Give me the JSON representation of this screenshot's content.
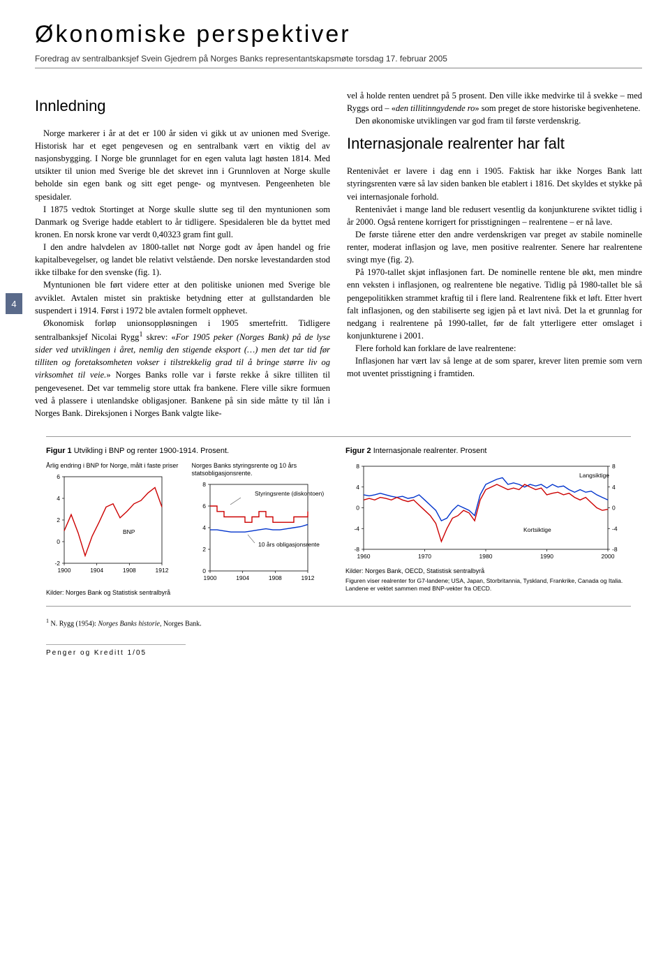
{
  "page_number": "4",
  "title": "Økonomiske perspektiver",
  "subtitle": "Foredrag av sentralbanksjef Svein Gjedrem på Norges Banks representantskapsmøte torsdag 17. februar 2005",
  "section1_title": "Innledning",
  "section2_title": "Internasjonale realrenter har falt",
  "col1": {
    "p1": "Norge markerer i år at det er 100 år siden vi gikk ut av unionen med Sverige. Historisk har et eget pengevesen og en sentralbank vært en viktig del av nasjonsbygging. I Norge ble grunnlaget for en egen valuta lagt høsten 1814. Med utsikter til union med Sverige ble det skrevet inn i Grunnloven at Norge skulle beholde sin egen bank og sitt eget penge- og myntvesen. Pengeenheten ble spesidaler.",
    "p2": "I 1875 vedtok Stortinget at Norge skulle slutte seg til den myntunionen som Danmark og Sverige hadde etablert to år tidligere. Spesidaleren ble da byttet med kronen. En norsk krone var verdt 0,40323 gram fint gull.",
    "p3": "I den andre halvdelen av 1800-tallet nøt Norge godt av åpen handel og frie kapitalbevegelser, og landet ble relativt velstående. Den norske levestandarden stod ikke tilbake for den svenske (fig. 1).",
    "p4": "Myntunionen ble ført videre etter at den politiske unionen med Sverige ble avviklet. Avtalen mistet sin praktiske betydning etter at gullstandarden ble suspendert i 1914. Først i 1972 ble avtalen formelt opphevet.",
    "p5a": "Økonomisk forløp unionsoppløsningen i 1905 smertefritt. Tidligere sentralbanksjef Nicolai Rygg",
    "p5b": " skrev: «",
    "p5c": "For 1905 peker (Norges Bank) på de lyse sider ved utviklingen i året, nemlig den stigende eksport (…) men det tar tid før tilliten og foretaksomheten vokser i tilstrekkelig grad til å bringe større liv og virksomhet til veie.",
    "p5d": "» Norges Banks rolle var i første rekke å sikre tilliten til pengevesenet. Det var temmelig store uttak fra bankene. Flere ville sikre formuen ved å plassere i utenlandske obligasjoner. Bankene på sin side måtte ty til lån i Norges Bank. Direksjonen i Norges Bank valgte like-"
  },
  "col2": {
    "p1": "vel å holde renten uendret på 5 prosent. Den ville ikke medvirke til å svekke – med Ryggs ord – «",
    "p1b": "den tillitinngydende ro",
    "p1c": "» som preget de store historiske begivenhetene.",
    "p2": "Den økonomiske utviklingen var god fram til første verdenskrig.",
    "p3": "Rentenivået er lavere i dag enn i 1905. Faktisk har ikke Norges Bank latt styringsrenten være så lav siden banken ble etablert i 1816. Det skyldes et stykke på vei internasjonale forhold.",
    "p4": "Rentenivået i mange land ble redusert vesentlig da konjunkturene sviktet tidlig i år 2000. Også rentene korrigert for prisstigningen – realrentene – er nå lave.",
    "p5": "De første tiårene etter den andre verdenskrigen var preget av stabile nominelle renter, moderat inflasjon og lave, men positive realrenter. Senere har realrentene svingt mye (fig. 2).",
    "p6": "På 1970-tallet skjøt inflasjonen fart. De nominelle rentene ble økt, men mindre enn veksten i inflasjonen, og realrentene ble negative. Tidlig på 1980-tallet ble så pengepolitikken strammet kraftig til i flere land. Realrentene fikk et løft. Etter hvert falt inflasjonen, og den stabiliserte seg igjen på et lavt nivå. Det la et grunnlag for nedgang i realrentene på 1990-tallet, før de falt ytterligere etter omslaget i konjunkturene i 2001.",
    "p7": "Flere forhold kan forklare de lave realrentene:",
    "p8": "Inflasjonen har vært lav så lenge at de som sparer, krever liten premie som vern mot uventet prisstigning i framtiden."
  },
  "fig1": {
    "title_bold": "Figur 1",
    "title_rest": " Utvikling i BNP og renter 1900-1914. Prosent.",
    "left_label": "Årlig endring i BNP for Norge, målt  i faste priser",
    "right_label": "Norges Banks styringsrente og 10 års statsobligasjonsrente.",
    "source": "Kilder: Norges Bank og Statistisk sentralbyrå",
    "ann_bnp": "BNP",
    "ann_styrings": "Styringsrente (diskontoen)",
    "ann_oblig": "10 års obligasjonsrente",
    "left_chart": {
      "ylim": [
        -2,
        6
      ],
      "yticks": [
        -2,
        0,
        2,
        4,
        6
      ],
      "xticks": [
        "1900",
        "1904",
        "1908",
        "1912"
      ],
      "color": "#cc0000",
      "points": [
        1.0,
        2.5,
        0.8,
        -1.3,
        0.5,
        1.8,
        3.2,
        3.5,
        2.2,
        2.8,
        3.5,
        3.8,
        4.5,
        5.0,
        3.2
      ]
    },
    "right_chart": {
      "ylim": [
        0,
        8
      ],
      "yticks": [
        0,
        2,
        4,
        6,
        8
      ],
      "xticks": [
        "1900",
        "1904",
        "1908",
        "1912"
      ],
      "rente_color": "#cc0000",
      "oblig_color": "#0033cc",
      "rente_points": [
        6.0,
        5.5,
        5.0,
        5.0,
        5.0,
        4.5,
        5.0,
        5.5,
        5.0,
        4.5,
        4.5,
        4.5,
        5.0,
        5.0,
        5.5
      ],
      "oblig_points": [
        3.8,
        3.8,
        3.7,
        3.6,
        3.6,
        3.6,
        3.7,
        3.8,
        3.9,
        3.8,
        3.8,
        3.9,
        4.0,
        4.1,
        4.3
      ]
    }
  },
  "fig2": {
    "title_bold": "Figur 2",
    "title_rest": " Internasjonale realrenter. Prosent",
    "source": "Kilder: Norges Bank, OECD, Statistisk sentralbyrå",
    "note": "Figuren viser realrenter for G7-landene; USA, Japan, Storbritannia, Tyskland, Frankrike, Canada og Italia. Landene er vektet sammen med BNP-vekter fra OECD.",
    "ann_long": "Langsiktige",
    "ann_short": "Kortsiktige",
    "chart": {
      "ylim": [
        -8,
        8
      ],
      "yticks": [
        -8,
        -4,
        0,
        4,
        8
      ],
      "xticks": [
        "1960",
        "1970",
        "1980",
        "1990",
        "2000"
      ],
      "long_color": "#0033cc",
      "short_color": "#cc0000",
      "long_points": [
        2.5,
        2.3,
        2.5,
        2.8,
        2.5,
        2.2,
        2.0,
        2.2,
        1.8,
        2.0,
        2.5,
        1.5,
        0.5,
        -0.5,
        -2.5,
        -2.0,
        -0.5,
        0.5,
        0.0,
        -0.5,
        -1.5,
        2.5,
        4.5,
        5.0,
        5.5,
        5.8,
        4.5,
        4.8,
        4.5,
        4.0,
        4.5,
        4.2,
        4.5,
        3.8,
        4.5,
        4.0,
        4.2,
        3.5,
        3.0,
        3.5,
        3.0,
        3.2,
        2.5,
        2.0,
        1.5
      ],
      "short_points": [
        1.5,
        1.8,
        1.5,
        2.0,
        1.8,
        1.5,
        2.0,
        1.5,
        1.2,
        1.5,
        0.5,
        -0.5,
        -1.5,
        -3.0,
        -6.5,
        -4.0,
        -2.0,
        -1.5,
        -0.5,
        -1.0,
        -2.5,
        1.5,
        3.5,
        4.0,
        4.5,
        4.0,
        3.5,
        3.8,
        3.5,
        4.5,
        4.0,
        3.5,
        3.8,
        2.5,
        2.8,
        3.0,
        2.5,
        2.8,
        2.0,
        1.5,
        2.0,
        1.0,
        0.0,
        -0.5,
        -0.3
      ]
    }
  },
  "footnote": {
    "num": "1",
    "text": " N. Rygg (1954): ",
    "italic": "Norges Banks historie",
    "rest": ", Norges Bank."
  },
  "footer": "Penger og Kreditt 1/05"
}
